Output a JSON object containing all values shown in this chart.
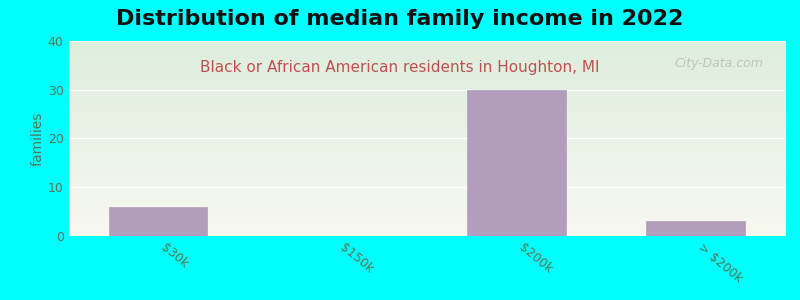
{
  "title": "Distribution of median family income in 2022",
  "subtitle": "Black or African American residents in Houghton, MI",
  "ylabel": "families",
  "categories": [
    "$30k",
    "$150k",
    "$200k",
    "> $200k"
  ],
  "values": [
    6,
    0,
    30,
    3
  ],
  "bar_color": "#b39dbd",
  "bg_color": "#00ffff",
  "plot_bg_gradient_top": "#ddeedd",
  "plot_bg_gradient_bottom": "#f8f8f0",
  "grid_color": "#ffffff",
  "ylim": [
    0,
    40
  ],
  "yticks": [
    0,
    10,
    20,
    30,
    40
  ],
  "title_fontsize": 16,
  "subtitle_fontsize": 11,
  "ylabel_fontsize": 10,
  "tick_label_color": "#557755",
  "watermark": "City-Data.com"
}
